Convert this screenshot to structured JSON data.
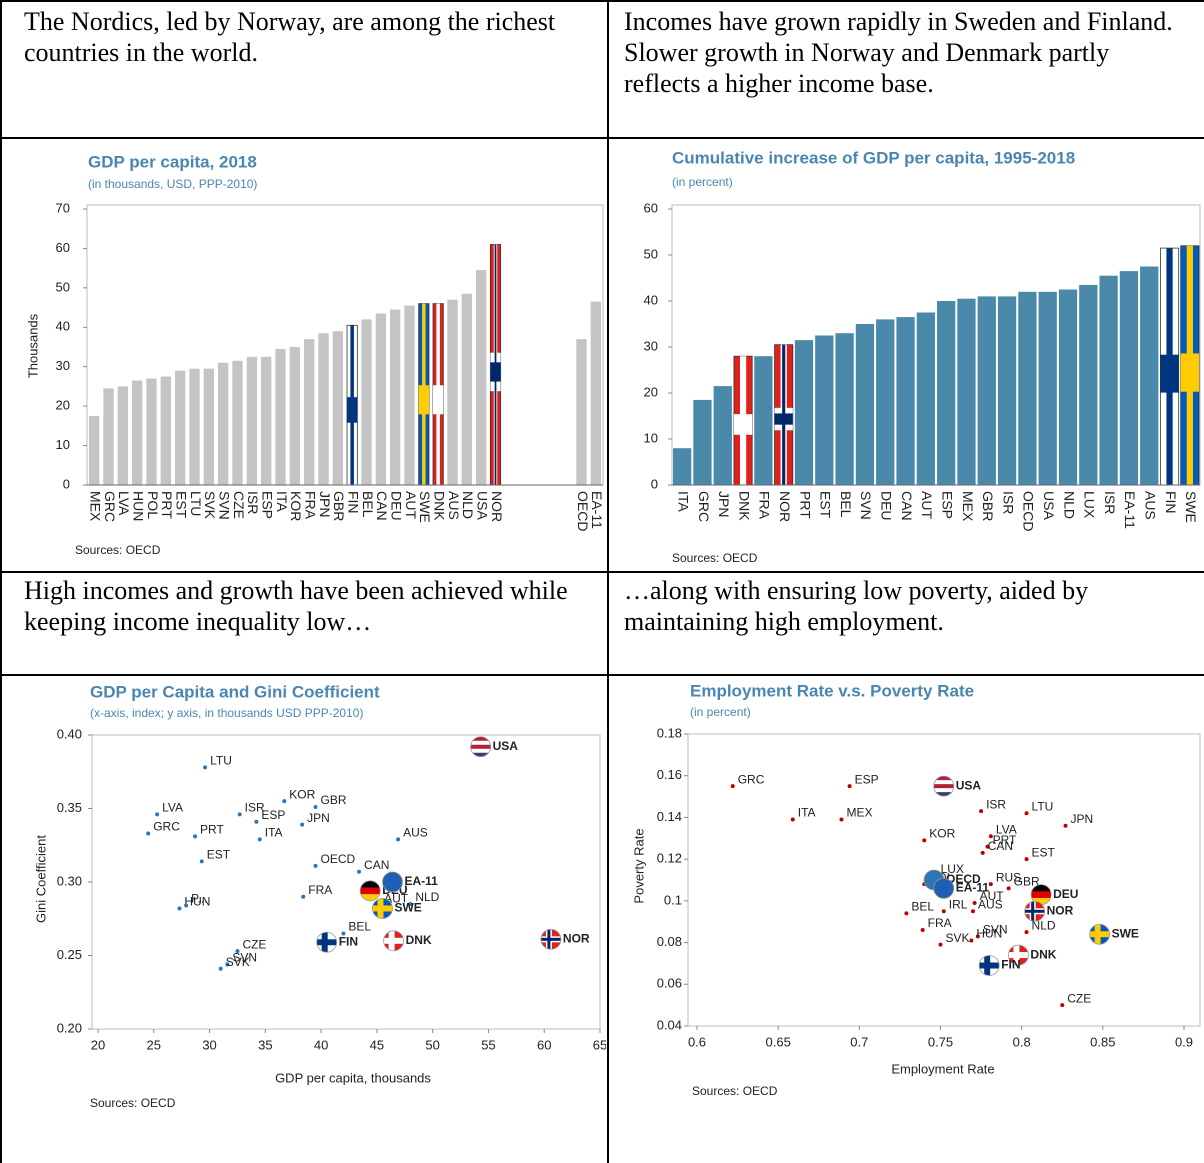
{
  "table": {
    "rows": [
      [
        "The Nordics, led by Norway, are among the richest countries in the world.",
        "Incomes have grown rapidly in Sweden and Finland. Slower growth in Norway and Denmark partly reflects a higher income base."
      ],
      [
        "High incomes and growth have been achieved while keeping income inequality low…",
        "…along with ensuring low poverty, aided by maintaining high employment."
      ]
    ]
  },
  "chart_data": [
    {
      "type": "bar",
      "title": "GDP per capita, 2018",
      "subtitle": "(in thousands, USD, PPP-2010)",
      "y_label": "Thousands",
      "source": "Sources: OECD",
      "categories": [
        "MEX",
        "GRC",
        "LVA",
        "HUN",
        "POL",
        "PRT",
        "EST",
        "LTU",
        "SVK",
        "SVN",
        "CZE",
        "ISR",
        "ESP",
        "ITA",
        "KOR",
        "FRA",
        "JPN",
        "GBR",
        "FIN",
        "BEL",
        "CAN",
        "DEU",
        "AUT",
        "SWE",
        "DNK",
        "AUS",
        "NLD",
        "USA",
        "NOR",
        null,
        null,
        null,
        null,
        null,
        "OECD",
        "EA-11"
      ],
      "values": [
        17.5,
        24.5,
        25,
        26.5,
        27,
        27.5,
        29,
        29.5,
        29.5,
        31,
        31.5,
        32.5,
        32.5,
        34.5,
        35,
        37,
        38.5,
        39,
        40.5,
        42,
        43.5,
        44.5,
        45.5,
        46,
        46,
        47,
        48.5,
        54.5,
        61,
        null,
        null,
        null,
        null,
        null,
        37,
        46.5
      ],
      "colors": [
        "#c4c4c4",
        "#c4c4c4",
        "#c4c4c4",
        "#c4c4c4",
        "#c4c4c4",
        "#c4c4c4",
        "#c4c4c4",
        "#c4c4c4",
        "#c4c4c4",
        "#c4c4c4",
        "#c4c4c4",
        "#c4c4c4",
        "#c4c4c4",
        "#c4c4c4",
        "#c4c4c4",
        "#c4c4c4",
        "#c4c4c4",
        "#c4c4c4",
        {
          "fill": "#ffffff",
          "cross": "#003580"
        },
        "#c4c4c4",
        "#c4c4c4",
        "#c4c4c4",
        "#c4c4c4",
        {
          "fill": "#005bbb",
          "cross": "#fecc00"
        },
        {
          "fill": "#e0201b",
          "cross": "#ffffff"
        },
        "#c4c4c4",
        "#c4c4c4",
        "#c4c4c4",
        {
          "fill": "#e0201b",
          "cross": "#ffffff",
          "inner": "#002868"
        },
        null,
        null,
        null,
        null,
        null,
        "#c4c4c4",
        "#c4c4c4"
      ],
      "ylim": [
        0,
        70
      ],
      "yticks": [
        0,
        10,
        20,
        30,
        40,
        50,
        60,
        70
      ]
    },
    {
      "type": "bar",
      "title": "Cumulative increase of GDP per capita, 1995-2018",
      "subtitle": "(in percent)",
      "source": "Sources: OECD",
      "categories": [
        "ITA",
        "GRC",
        "JPN",
        "DNK",
        "FRA",
        "NOR",
        "PRT",
        "EST",
        "BEL",
        "SVN",
        "DEU",
        "CAN",
        "AUT",
        "ESP",
        "MEX",
        "GBR",
        "ISR",
        "OECD",
        "USA",
        "NLD",
        "LUX",
        "ISR",
        "EA-11",
        "AUS",
        "FIN",
        "SWE"
      ],
      "values": [
        8,
        18.5,
        21.5,
        28,
        28,
        30.5,
        31.5,
        32.5,
        33,
        35,
        36,
        36.5,
        37.5,
        40,
        40.5,
        41,
        41,
        42,
        42,
        42.5,
        43.5,
        45.5,
        46.5,
        47.5,
        51.5,
        52
      ],
      "colors": [
        "#4b89aa",
        "#4b89aa",
        "#4b89aa",
        {
          "fill": "#e0201b",
          "cross": "#ffffff"
        },
        "#4b89aa",
        {
          "fill": "#e0201b",
          "cross": "#ffffff",
          "inner": "#002868"
        },
        "#4b89aa",
        "#4b89aa",
        "#4b89aa",
        "#4b89aa",
        "#4b89aa",
        "#4b89aa",
        "#4b89aa",
        "#4b89aa",
        "#4b89aa",
        "#4b89aa",
        "#4b89aa",
        "#4b89aa",
        "#4b89aa",
        "#4b89aa",
        "#4b89aa",
        "#4b89aa",
        "#4b89aa",
        "#4b89aa",
        {
          "fill": "#ffffff",
          "cross": "#003580"
        },
        {
          "fill": "#005bbb",
          "cross": "#fecc00"
        }
      ],
      "ylim": [
        0,
        60
      ],
      "yticks": [
        0,
        10,
        20,
        30,
        40,
        50,
        60
      ]
    },
    {
      "type": "scatter",
      "title": "GDP per Capita and Gini Coefficient",
      "subtitle": "(x-axis, index; y axis, in thousands USD PPP-2010)",
      "x_label": "GDP per capita, thousands",
      "y_label": "Gini Coefficient",
      "source": "Sources: OECD",
      "labels": [
        "LTU",
        "KOR",
        "GBR",
        "LVA",
        "ISR",
        "ESP",
        "JPN",
        "AUS",
        "PRT",
        "GRC",
        "EST",
        "ITA",
        "OECD",
        "CAN",
        "FRA",
        "NLD",
        "AUT",
        "HUN",
        "P...",
        "BEL",
        "CZE",
        "SVN",
        "SVK",
        "USA",
        "DEU",
        "EA-11",
        "SWE",
        "NOR",
        "FIN",
        "DNK"
      ],
      "x": [
        29.6,
        36.7,
        39.5,
        25.3,
        32.7,
        34.2,
        38.3,
        46.9,
        28.7,
        24.5,
        29.3,
        34.5,
        39.5,
        43.4,
        38.4,
        48.0,
        45.2,
        27.3,
        27.9,
        42.0,
        32.5,
        31.6,
        31.0,
        54.3,
        44.4,
        46.4,
        45.5,
        60.6,
        40.5,
        46.5
      ],
      "y": [
        0.378,
        0.355,
        0.351,
        0.346,
        0.346,
        0.341,
        0.339,
        0.329,
        0.331,
        0.333,
        0.314,
        0.329,
        0.311,
        0.307,
        0.29,
        0.285,
        0.284,
        0.282,
        0.284,
        0.265,
        0.253,
        0.244,
        0.241,
        0.392,
        0.294,
        0.3,
        0.282,
        0.261,
        0.259,
        0.26
      ],
      "colors": [
        "#2e75b6",
        "#2e75b6",
        "#2e75b6",
        "#2e75b6",
        "#2e75b6",
        "#2e75b6",
        "#2e75b6",
        "#2e75b6",
        "#2e75b6",
        "#2e75b6",
        "#2e75b6",
        "#2e75b6",
        "#2e75b6",
        "#2e75b6",
        "#2e75b6",
        "#2e75b6",
        "#2e75b6",
        "#2e75b6",
        "#2e75b6",
        "#2e75b6",
        "#2e75b6",
        "#2e75b6",
        "#2e75b6",
        {
          "stripes": [
            "#b22234",
            "#ffffff",
            "#b22234",
            "#ffffff",
            "#3c3b6e"
          ]
        },
        {
          "stripes": [
            "#000000",
            "#dd0000",
            "#ffce00"
          ]
        },
        {
          "stripes": [
            "#1f5fb4"
          ]
        },
        {
          "fill": "#005bbb",
          "cross": "#fecc00"
        },
        {
          "fill": "#e0201b",
          "cross": "#ffffff",
          "inner": "#002868"
        },
        {
          "fill": "#ffffff",
          "cross": "#003580"
        },
        {
          "fill": "#e0201b",
          "cross": "#ffffff"
        }
      ],
      "xlim": [
        20,
        65
      ],
      "xticks": [
        20,
        25,
        30,
        35,
        40,
        45,
        50,
        55,
        60,
        65
      ],
      "ylim": [
        0.2,
        0.4
      ],
      "yticks": [
        {
          "value": 0.2,
          "label": "0.20"
        },
        0.25,
        {
          "value": 0.3,
          "label": "0.30"
        },
        0.35,
        {
          "value": 0.4,
          "label": "0.40"
        }
      ]
    },
    {
      "type": "scatter",
      "title": "Employment Rate v.s. Poverty Rate",
      "subtitle": "(in percent)",
      "x_label": "Employment Rate",
      "y_label": "Poverty Rate",
      "source": "Sources: OECD",
      "labels": [
        "GRC",
        "ESP",
        "ITA",
        "MEX",
        "ISR",
        "LTU",
        "JPN",
        "KOR",
        "LVA",
        "PRT",
        "CAN",
        "EST",
        "LUX",
        "POL",
        "RUS",
        "GBR",
        "AUT",
        "BEL",
        "IRL",
        "AUS",
        "FRA",
        "SVN",
        "NLD",
        "SVK",
        "HUN",
        "CZE",
        "OECD",
        "USA",
        "EA-11",
        "DEU",
        "NOR",
        "SWE",
        "DNK",
        "FIN"
      ],
      "x": [
        0.622,
        0.694,
        0.659,
        0.689,
        0.775,
        0.803,
        0.827,
        0.74,
        0.781,
        0.779,
        0.776,
        0.803,
        0.747,
        0.74,
        0.781,
        0.792,
        0.771,
        0.729,
        0.752,
        0.77,
        0.739,
        0.773,
        0.803,
        0.75,
        0.769,
        0.825,
        0.746,
        0.752,
        0.752,
        0.812,
        0.808,
        0.848,
        0.798,
        0.78
      ],
      "y": [
        0.155,
        0.155,
        0.139,
        0.139,
        0.143,
        0.142,
        0.136,
        0.129,
        0.131,
        0.126,
        0.123,
        0.12,
        0.112,
        0.108,
        0.108,
        0.106,
        0.099,
        0.094,
        0.095,
        0.095,
        0.086,
        0.083,
        0.085,
        0.079,
        0.081,
        0.05,
        0.11,
        0.155,
        0.106,
        0.103,
        0.095,
        0.084,
        0.074,
        0.069
      ],
      "colors": [
        "#c00000",
        "#c00000",
        "#c00000",
        "#c00000",
        "#c00000",
        "#c00000",
        "#c00000",
        "#c00000",
        "#c00000",
        "#c00000",
        "#c00000",
        "#c00000",
        "#c00000",
        "#c00000",
        "#c00000",
        "#c00000",
        "#c00000",
        "#c00000",
        "#c00000",
        "#c00000",
        "#c00000",
        "#c00000",
        "#c00000",
        "#c00000",
        "#c00000",
        "#c00000",
        {
          "stripes": [
            "#2e75b6"
          ]
        },
        {
          "stripes": [
            "#b22234",
            "#ffffff",
            "#b22234",
            "#ffffff",
            "#3c3b6e"
          ]
        },
        {
          "stripes": [
            "#1f5fb4"
          ]
        },
        {
          "stripes": [
            "#000000",
            "#dd0000",
            "#ffce00"
          ]
        },
        {
          "fill": "#e0201b",
          "cross": "#ffffff",
          "inner": "#002868"
        },
        {
          "fill": "#005bbb",
          "cross": "#fecc00"
        },
        {
          "fill": "#e0201b",
          "cross": "#ffffff"
        },
        {
          "fill": "#ffffff",
          "cross": "#003580"
        }
      ],
      "xlim": [
        0.6,
        0.9
      ],
      "xticks": [
        0.6,
        0.65,
        0.7,
        0.75,
        0.8,
        0.85,
        0.9
      ],
      "ylim": [
        0.04,
        0.18
      ],
      "yticks": [
        0.04,
        0.06,
        0.08,
        0.1,
        0.12,
        0.14,
        0.16,
        0.18
      ]
    }
  ]
}
